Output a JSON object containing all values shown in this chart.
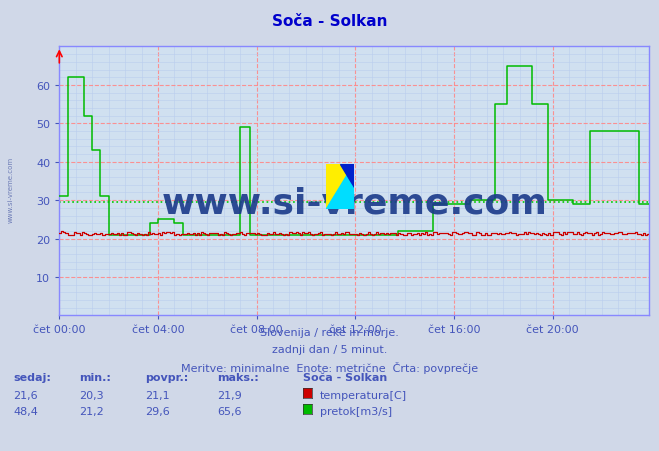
{
  "title": "Soča - Solkan",
  "bg_color": "#d0d8e8",
  "plot_bg_color": "#d0e0f0",
  "title_color": "#0000cc",
  "grid_color_major": "#ff8888",
  "grid_color_minor": "#b8ccee",
  "avg_line_color": "#00cc00",
  "avg_line_value": 29.6,
  "text_color": "#4455bb",
  "y_ticks": [
    10,
    20,
    30,
    40,
    50,
    60
  ],
  "ylim": [
    0,
    70
  ],
  "xlim": [
    0,
    287
  ],
  "subtitle1": "Slovenija / reke in morje.",
  "subtitle2": "zadnji dan / 5 minut.",
  "subtitle3": "Meritve: minimalne  Enote: metrične  Črta: povprečje",
  "legend_title": "Soča - Solkan",
  "temp_color": "#cc0000",
  "flow_color": "#00bb00",
  "axis_color": "#8888ff",
  "watermark_text": "www.si-vreme.com",
  "watermark_color": "#1a3a8a",
  "num_points": 288,
  "x_tick_positions": [
    0,
    48,
    96,
    144,
    192,
    240
  ],
  "x_tick_labels": [
    "čet 00:00",
    "čet 04:00",
    "čet 08:00",
    "čet 12:00",
    "čet 16:00",
    "čet 20:00"
  ]
}
